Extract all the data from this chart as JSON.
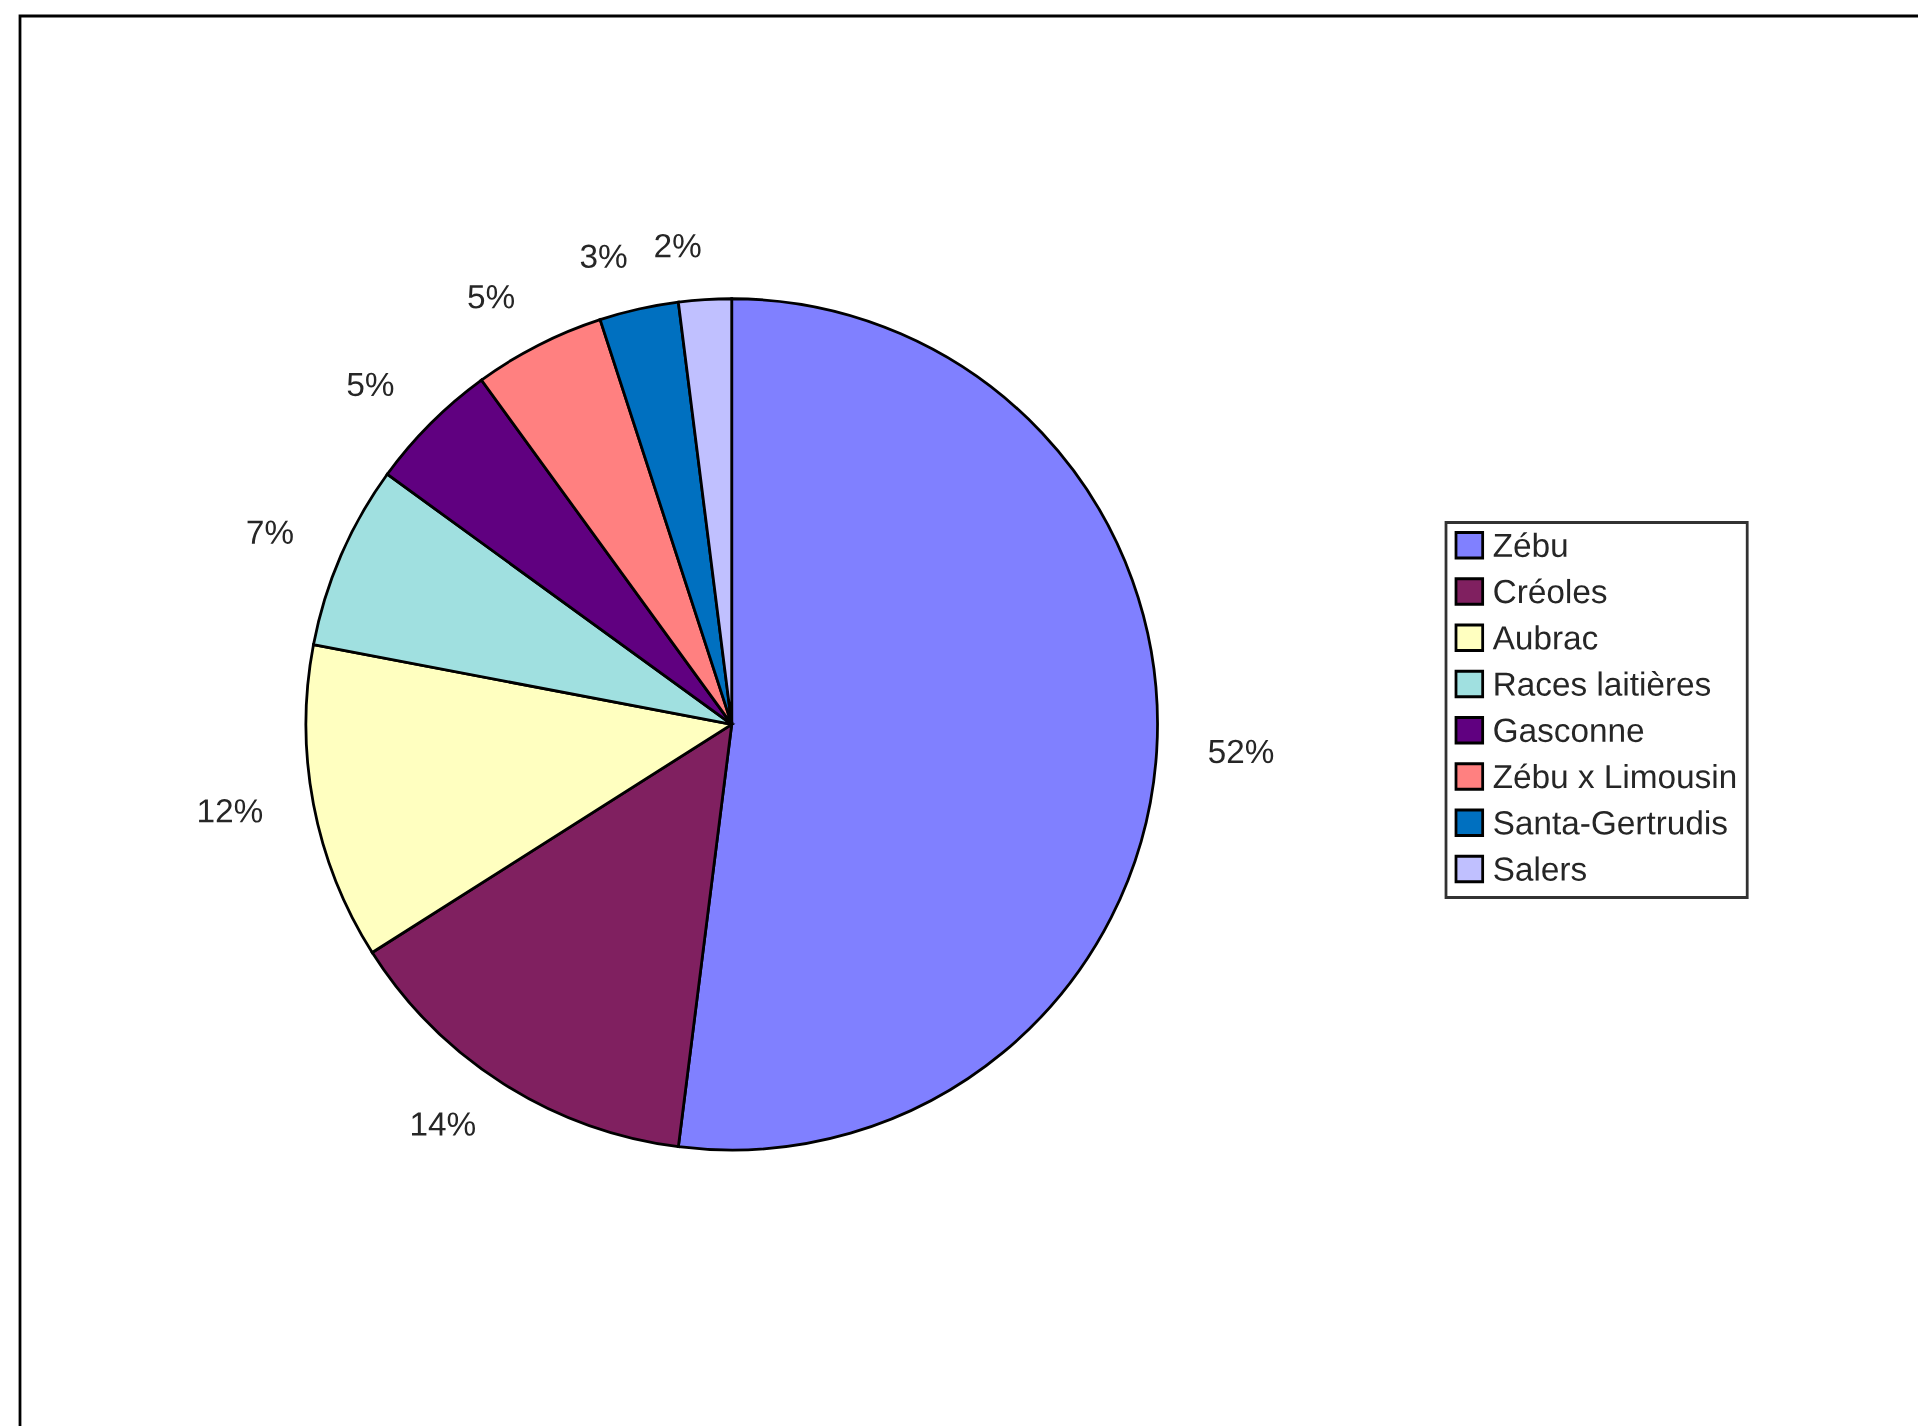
{
  "chart_data": {
    "type": "pie",
    "categories": [
      "Zébu",
      "Créoles",
      "Aubrac",
      "Races laitières",
      "Gasconne",
      "Zébu x Limousin",
      "Santa-Gertrudis",
      "Salers"
    ],
    "values": [
      52,
      14,
      12,
      7,
      5,
      5,
      3,
      2
    ],
    "value_labels": [
      "52%",
      "14%",
      "12%",
      "7%",
      "5%",
      "5%",
      "3%",
      "2%"
    ],
    "colors": [
      "#8080ff",
      "#802060",
      "#ffffc0",
      "#a0e0e0",
      "#600080",
      "#ff8080",
      "#0070c0",
      "#c0c0ff"
    ],
    "legend": "right"
  }
}
